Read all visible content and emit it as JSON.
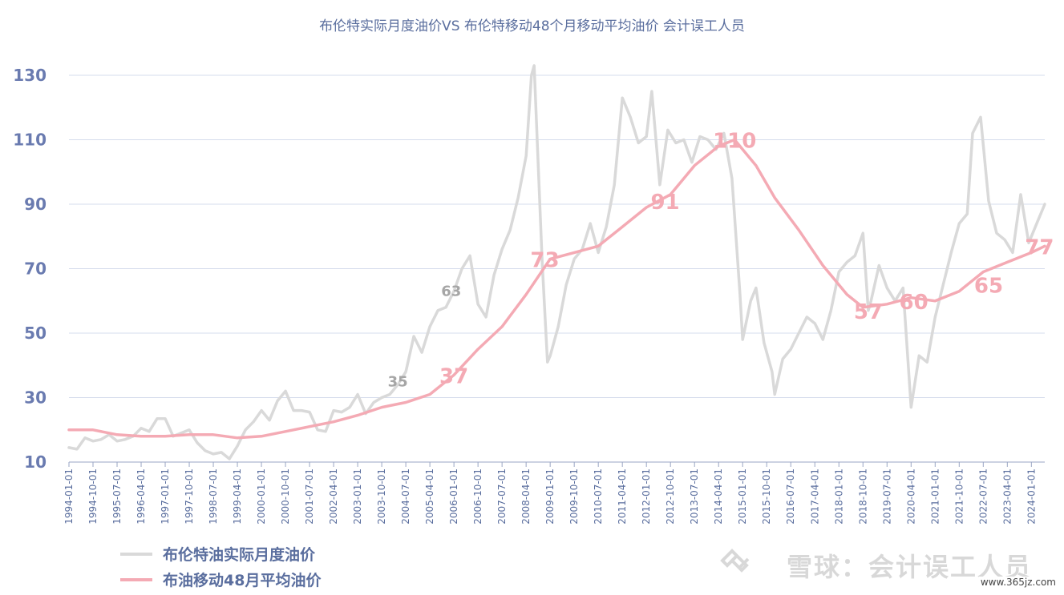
{
  "chart_data": {
    "type": "line",
    "title": "布伦特实际月度油价VS 布伦特移动48个月移动平均油价 会计误工人员",
    "ylim": [
      10,
      135
    ],
    "yticks": [
      10,
      30,
      50,
      70,
      90,
      110,
      130
    ],
    "xlim": [
      "1994-01-01",
      "2024-06-01"
    ],
    "x_tick_labels": [
      "1994-01-01",
      "1994-10-01",
      "1995-07-01",
      "1996-04-01",
      "1997-01-01",
      "1997-10-01",
      "1998-07-01",
      "1999-04-01",
      "2000-01-01",
      "2000-10-01",
      "2001-07-01",
      "2002-04-01",
      "2003-01-01",
      "2003-10-01",
      "2004-07-01",
      "2005-04-01",
      "2006-01-01",
      "2006-10-01",
      "2007-07-01",
      "2008-04-01",
      "2009-01-01",
      "2009-10-01",
      "2010-07-01",
      "2011-04-01",
      "2012-01-01",
      "2012-10-01",
      "2013-07-01",
      "2014-04-01",
      "2015-01-01",
      "2015-10-01",
      "2016-07-01",
      "2017-04-01",
      "2018-01-01",
      "2018-10-01",
      "2019-07-01",
      "2020-04-01",
      "2021-01-01",
      "2021-10-01",
      "2022-07-01",
      "2023-04-01",
      "2024-01-01"
    ],
    "grid": true,
    "legend_position": "bottom-left",
    "series": [
      {
        "name": "布伦特油实际月度油价",
        "color": "#d9d9d9",
        "points": [
          [
            "1994-01-01",
            14.5
          ],
          [
            "1994-04-01",
            14
          ],
          [
            "1994-07-01",
            17.5
          ],
          [
            "1994-10-01",
            16.5
          ],
          [
            "1995-01-01",
            17
          ],
          [
            "1995-04-01",
            18.5
          ],
          [
            "1995-07-01",
            16.5
          ],
          [
            "1995-10-01",
            17
          ],
          [
            "1996-01-01",
            18
          ],
          [
            "1996-04-01",
            20.5
          ],
          [
            "1996-07-01",
            19.5
          ],
          [
            "1996-10-01",
            23.5
          ],
          [
            "1997-01-01",
            23.5
          ],
          [
            "1997-04-01",
            18
          ],
          [
            "1997-07-01",
            19
          ],
          [
            "1997-10-01",
            20
          ],
          [
            "1998-01-01",
            16
          ],
          [
            "1998-04-01",
            13.5
          ],
          [
            "1998-07-01",
            12.5
          ],
          [
            "1998-10-01",
            13
          ],
          [
            "1999-01-01",
            11
          ],
          [
            "1999-04-01",
            15
          ],
          [
            "1999-07-01",
            20
          ],
          [
            "1999-10-01",
            22.5
          ],
          [
            "2000-01-01",
            26
          ],
          [
            "2000-04-01",
            23
          ],
          [
            "2000-07-01",
            29
          ],
          [
            "2000-10-01",
            32
          ],
          [
            "2001-01-01",
            26
          ],
          [
            "2001-04-01",
            26
          ],
          [
            "2001-07-01",
            25.5
          ],
          [
            "2001-10-01",
            20
          ],
          [
            "2002-01-01",
            19.5
          ],
          [
            "2002-04-01",
            26
          ],
          [
            "2002-07-01",
            25.5
          ],
          [
            "2002-10-01",
            27
          ],
          [
            "2003-01-01",
            31
          ],
          [
            "2003-04-01",
            25
          ],
          [
            "2003-07-01",
            28.5
          ],
          [
            "2003-10-01",
            30
          ],
          [
            "2004-01-01",
            31
          ],
          [
            "2004-04-01",
            34
          ],
          [
            "2004-07-01",
            38
          ],
          [
            "2004-10-01",
            49
          ],
          [
            "2005-01-01",
            44
          ],
          [
            "2005-04-01",
            52
          ],
          [
            "2005-07-01",
            57
          ],
          [
            "2005-10-01",
            58
          ],
          [
            "2006-01-01",
            63
          ],
          [
            "2006-04-01",
            70
          ],
          [
            "2006-07-01",
            74
          ],
          [
            "2006-10-01",
            59
          ],
          [
            "2007-01-01",
            55
          ],
          [
            "2007-04-01",
            68
          ],
          [
            "2007-07-01",
            76
          ],
          [
            "2007-10-01",
            82
          ],
          [
            "2008-01-01",
            92
          ],
          [
            "2008-04-01",
            105
          ],
          [
            "2008-06-01",
            130
          ],
          [
            "2008-07-01",
            133
          ],
          [
            "2008-10-01",
            72
          ],
          [
            "2008-12-01",
            41
          ],
          [
            "2009-01-01",
            43
          ],
          [
            "2009-04-01",
            52
          ],
          [
            "2009-07-01",
            65
          ],
          [
            "2009-10-01",
            73
          ],
          [
            "2010-01-01",
            76
          ],
          [
            "2010-04-01",
            84
          ],
          [
            "2010-07-01",
            75
          ],
          [
            "2010-10-01",
            83
          ],
          [
            "2011-01-01",
            96
          ],
          [
            "2011-04-01",
            123
          ],
          [
            "2011-07-01",
            117
          ],
          [
            "2011-10-01",
            109
          ],
          [
            "2012-01-01",
            111
          ],
          [
            "2012-03-01",
            125
          ],
          [
            "2012-06-01",
            96
          ],
          [
            "2012-09-01",
            113
          ],
          [
            "2012-12-01",
            109
          ],
          [
            "2013-03-01",
            110
          ],
          [
            "2013-06-01",
            103
          ],
          [
            "2013-09-01",
            111
          ],
          [
            "2013-12-01",
            110
          ],
          [
            "2014-03-01",
            107
          ],
          [
            "2014-06-01",
            112
          ],
          [
            "2014-09-01",
            98
          ],
          [
            "2014-12-01",
            62
          ],
          [
            "2015-01-01",
            48
          ],
          [
            "2015-04-01",
            60
          ],
          [
            "2015-06-01",
            64
          ],
          [
            "2015-09-01",
            47
          ],
          [
            "2015-12-01",
            38
          ],
          [
            "2016-01-01",
            31
          ],
          [
            "2016-04-01",
            42
          ],
          [
            "2016-07-01",
            45
          ],
          [
            "2016-10-01",
            50
          ],
          [
            "2017-01-01",
            55
          ],
          [
            "2017-04-01",
            53
          ],
          [
            "2017-07-01",
            48
          ],
          [
            "2017-10-01",
            57
          ],
          [
            "2018-01-01",
            69
          ],
          [
            "2018-04-01",
            72
          ],
          [
            "2018-07-01",
            74
          ],
          [
            "2018-10-01",
            81
          ],
          [
            "2018-12-01",
            57
          ],
          [
            "2019-01-01",
            60
          ],
          [
            "2019-04-01",
            71
          ],
          [
            "2019-07-01",
            64
          ],
          [
            "2019-10-01",
            60
          ],
          [
            "2020-01-01",
            64
          ],
          [
            "2020-04-01",
            27
          ],
          [
            "2020-07-01",
            43
          ],
          [
            "2020-10-01",
            41
          ],
          [
            "2021-01-01",
            55
          ],
          [
            "2021-04-01",
            65
          ],
          [
            "2021-07-01",
            75
          ],
          [
            "2021-10-01",
            84
          ],
          [
            "2022-01-01",
            87
          ],
          [
            "2022-03-01",
            112
          ],
          [
            "2022-06-01",
            117
          ],
          [
            "2022-09-01",
            91
          ],
          [
            "2022-12-01",
            81
          ],
          [
            "2023-03-01",
            79
          ],
          [
            "2023-06-01",
            75
          ],
          [
            "2023-09-01",
            93
          ],
          [
            "2023-12-01",
            78
          ],
          [
            "2024-03-01",
            84
          ],
          [
            "2024-06-01",
            90
          ]
        ]
      },
      {
        "name": "布油移动48月平均油价",
        "color": "#f4aab4",
        "points": [
          [
            "1994-01-01",
            20
          ],
          [
            "1994-10-01",
            20
          ],
          [
            "1995-07-01",
            18.5
          ],
          [
            "1996-04-01",
            18
          ],
          [
            "1997-01-01",
            18
          ],
          [
            "1997-10-01",
            18.5
          ],
          [
            "1998-07-01",
            18.5
          ],
          [
            "1999-04-01",
            17.5
          ],
          [
            "2000-01-01",
            18
          ],
          [
            "2000-10-01",
            19.5
          ],
          [
            "2001-07-01",
            21
          ],
          [
            "2002-04-01",
            22.5
          ],
          [
            "2003-01-01",
            24.5
          ],
          [
            "2003-10-01",
            27
          ],
          [
            "2004-07-01",
            28.5
          ],
          [
            "2005-04-01",
            31
          ],
          [
            "2006-01-01",
            37
          ],
          [
            "2006-10-01",
            45
          ],
          [
            "2007-07-01",
            52
          ],
          [
            "2008-04-01",
            62
          ],
          [
            "2009-01-01",
            73
          ],
          [
            "2009-10-01",
            75
          ],
          [
            "2010-07-01",
            77
          ],
          [
            "2011-04-01",
            83
          ],
          [
            "2012-01-01",
            89
          ],
          [
            "2012-10-01",
            93
          ],
          [
            "2013-07-01",
            102
          ],
          [
            "2014-04-01",
            108
          ],
          [
            "2014-10-01",
            110
          ],
          [
            "2015-06-01",
            102
          ],
          [
            "2016-01-01",
            92
          ],
          [
            "2016-10-01",
            82
          ],
          [
            "2017-07-01",
            71
          ],
          [
            "2018-04-01",
            62
          ],
          [
            "2018-10-01",
            58
          ],
          [
            "2019-07-01",
            59
          ],
          [
            "2020-04-01",
            61
          ],
          [
            "2021-01-01",
            60
          ],
          [
            "2021-10-01",
            63
          ],
          [
            "2022-07-01",
            69
          ],
          [
            "2023-04-01",
            72
          ],
          [
            "2024-01-01",
            75
          ],
          [
            "2024-06-01",
            77
          ]
        ]
      }
    ],
    "annotations": [
      {
        "text": "35",
        "x": "2004-04-01",
        "y": 35,
        "color": "#a6a6a6",
        "size": "small"
      },
      {
        "text": "63",
        "x": "2005-12-01",
        "y": 63,
        "color": "#a6a6a6",
        "size": "small"
      },
      {
        "text": "37",
        "x": "2006-01-01",
        "y": 37,
        "color": "#f4aab4",
        "size": "large"
      },
      {
        "text": "73",
        "x": "2008-11-01",
        "y": 73,
        "color": "#f4aab4",
        "size": "large"
      },
      {
        "text": "91",
        "x": "2012-08-01",
        "y": 91,
        "color": "#f4aab4",
        "size": "large"
      },
      {
        "text": "110",
        "x": "2014-10-01",
        "y": 110,
        "color": "#f4aab4",
        "size": "large"
      },
      {
        "text": "57",
        "x": "2018-12-01",
        "y": 57,
        "color": "#f4aab4",
        "size": "large"
      },
      {
        "text": "60",
        "x": "2020-05-01",
        "y": 60,
        "color": "#f4aab4",
        "size": "large"
      },
      {
        "text": "65",
        "x": "2022-09-01",
        "y": 65,
        "color": "#f4aab4",
        "size": "large"
      },
      {
        "text": "77",
        "x": "2024-04-01",
        "y": 77,
        "color": "#f4aab4",
        "size": "large"
      }
    ]
  },
  "watermark": {
    "text": "雪球：会计误工人员",
    "url": "www.365jz.com"
  }
}
